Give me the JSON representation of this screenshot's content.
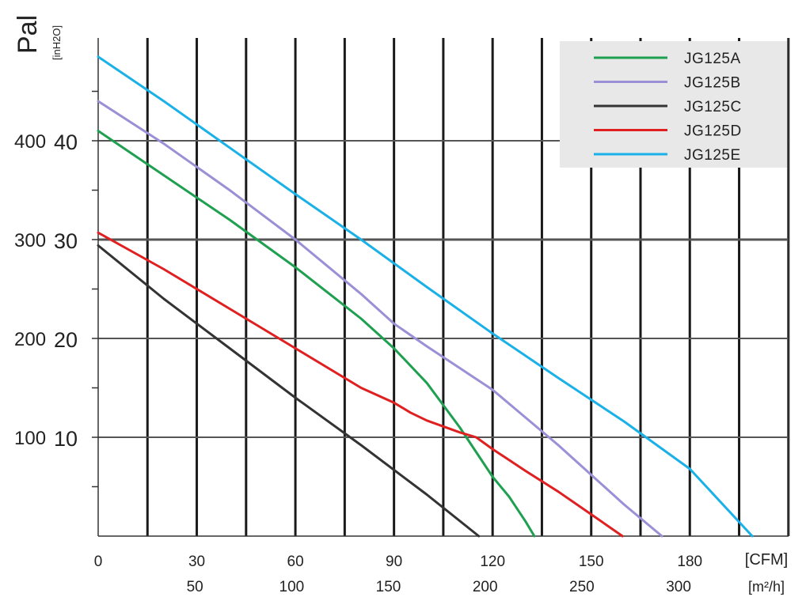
{
  "chart_data": {
    "type": "line",
    "y_unit_primary": "Pal",
    "y_unit_secondary": "[inH2O]",
    "x_unit_primary": "[CFM]",
    "x_unit_secondary": "[m²/h]",
    "x_ticks_cfm": [
      "0",
      "30",
      "60",
      "90",
      "120",
      "150",
      "180"
    ],
    "x_ticks_m3h": [
      "50",
      "100",
      "150",
      "200",
      "250",
      "300"
    ],
    "y_ticks_pa": [
      "100",
      "200",
      "300",
      "400"
    ],
    "y_ticks_inh2o": [
      "10",
      "20",
      "30",
      "40"
    ],
    "xlim": [
      0,
      189
    ],
    "ylim": [
      0,
      500
    ],
    "grid": true,
    "legend_position": "top-right",
    "colors": {
      "JG125A": "#1fa050",
      "JG125B": "#9b8fd6",
      "JG125C": "#333333",
      "JG125D": "#e02020",
      "JG125E": "#1ab0e8",
      "axis_unit_blue": "#2a3fa8"
    },
    "series": [
      {
        "name": "JG125A",
        "x": [
          0,
          20,
          40,
          60,
          80,
          90,
          100,
          110,
          120,
          125,
          130,
          132.7
        ],
        "y": [
          410,
          365,
          320,
          272,
          220,
          190,
          155,
          110,
          60,
          40,
          15,
          0
        ]
      },
      {
        "name": "JG125B",
        "x": [
          0,
          20,
          40,
          60,
          80,
          90,
          100,
          110,
          120,
          130,
          140,
          150,
          160,
          171.5
        ],
        "y": [
          440,
          397,
          350,
          300,
          245,
          215,
          192,
          170,
          148,
          120,
          92,
          62,
          32,
          0
        ]
      },
      {
        "name": "JG125C",
        "x": [
          0,
          20,
          40,
          60,
          80,
          100,
          115.8
        ],
        "y": [
          294,
          240,
          190,
          140,
          92,
          42,
          0
        ]
      },
      {
        "name": "JG125D",
        "x": [
          0,
          20,
          40,
          60,
          80,
          90,
          95,
          100,
          110,
          115,
          120,
          130,
          140,
          150,
          159.5
        ],
        "y": [
          307,
          270,
          230,
          190,
          150,
          135,
          125,
          117,
          105,
          100,
          88,
          66,
          45,
          22,
          0
        ]
      },
      {
        "name": "JG125E",
        "x": [
          0,
          20,
          40,
          60,
          80,
          100,
          120,
          140,
          160,
          180,
          199
        ],
        "y": [
          485,
          440,
          393,
          346,
          300,
          252,
          205,
          160,
          116,
          68,
          0
        ]
      }
    ]
  }
}
